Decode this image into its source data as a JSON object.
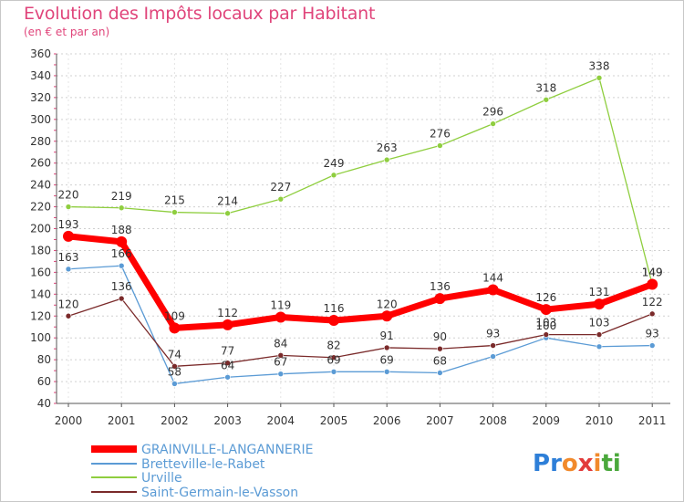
{
  "header": {
    "title": "Evolution des Impôts locaux par Habitant",
    "subtitle": "(en € et par an)"
  },
  "brand": {
    "text": "Proxiti",
    "letters": [
      "P",
      "r",
      "o",
      "x",
      "i",
      "t",
      "i"
    ],
    "colors": [
      "#2e7fd8",
      "#2e7fd8",
      "#f18a2c",
      "#e23b3b",
      "#f18a2c",
      "#4aa83b",
      "#4aa83b"
    ]
  },
  "chart_data": {
    "type": "line",
    "title": "Evolution des Impôts locaux par Habitant",
    "subtitle": "(en € et par an)",
    "x": [
      "2000",
      "2001",
      "2002",
      "2003",
      "2004",
      "2005",
      "2006",
      "2007",
      "2008",
      "2009",
      "2010",
      "2011"
    ],
    "ylim": [
      40,
      360
    ],
    "yticks": [
      40,
      60,
      80,
      100,
      120,
      140,
      160,
      180,
      200,
      220,
      240,
      260,
      280,
      300,
      320,
      340,
      360
    ],
    "grid": "horizontal dotted",
    "legend_position": "bottom-left",
    "series": [
      {
        "name": "GRAINVILLE-LANGANNERIE",
        "color": "#ff0000",
        "values": [
          193,
          188,
          109,
          112,
          119,
          116,
          120,
          136,
          144,
          126,
          131,
          149
        ],
        "labels": [
          "193",
          "188",
          "109",
          "112",
          "119",
          "116",
          "120",
          "136",
          "144",
          "126",
          "131",
          "149"
        ]
      },
      {
        "name": "Bretteville-le-Rabet",
        "color": "#5b9bd5",
        "values": [
          163,
          166,
          58,
          64,
          67,
          69,
          69,
          68,
          83,
          100,
          92,
          93
        ],
        "labels": [
          "163",
          "166",
          "58",
          "64",
          "67",
          "69",
          "69",
          "68",
          "",
          "100",
          "",
          "93"
        ]
      },
      {
        "name": "Urville",
        "color": "#8fce3f",
        "values": [
          220,
          219,
          215,
          214,
          227,
          249,
          263,
          276,
          296,
          318,
          338,
          149
        ],
        "labels": [
          "220",
          "219",
          "215",
          "214",
          "227",
          "249",
          "263",
          "276",
          "296",
          "318",
          "338",
          "149"
        ]
      },
      {
        "name": "Saint-Germain-le-Vasson",
        "color": "#7a2a2a",
        "values": [
          120,
          136,
          74,
          77,
          84,
          82,
          91,
          90,
          93,
          103,
          103,
          122
        ],
        "labels": [
          "120",
          "136",
          "74",
          "77",
          "84",
          "82",
          "91",
          "90",
          "93",
          "103",
          "103",
          "122"
        ]
      }
    ]
  }
}
